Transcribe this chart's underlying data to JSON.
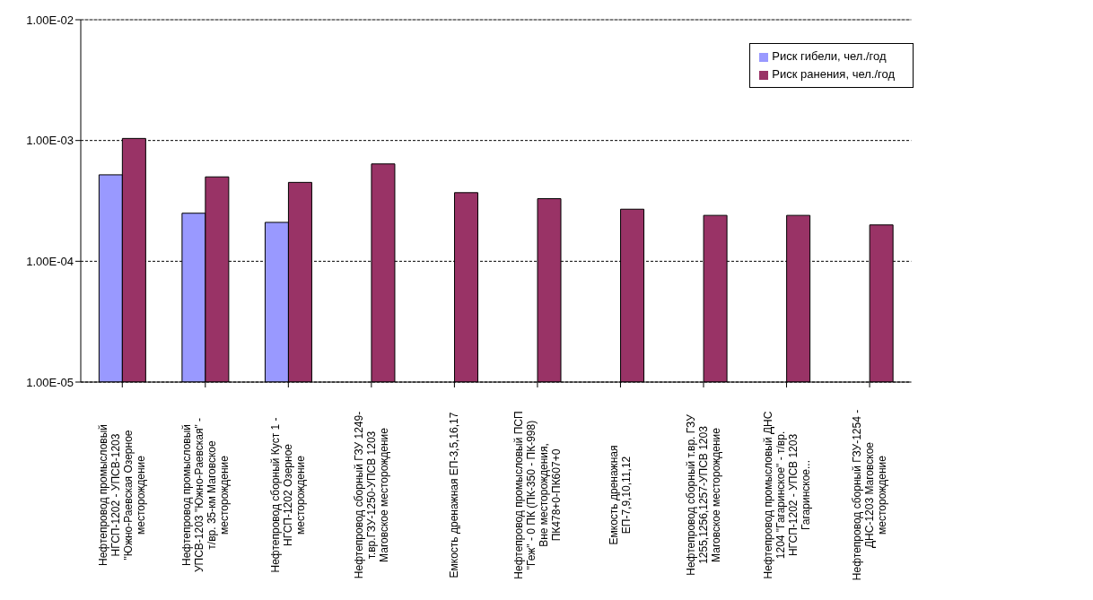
{
  "chart_data": {
    "type": "bar",
    "categories": [
      "Нефтепровод промысловый НГСП-1202 - УПСВ-1203 \"Южно-Раевская Озерное месторождение",
      "Нефтепровод промысловый УПСВ-1203 \"Южно-Раевская\" - т/вр. 35-км Маговское месторождение",
      "Нефтепровод сборный Куст 1 - НГСП-1202 Озерное месторождение",
      "Нефтепровод сборный ГЗУ 1249- т.вр.ГЗУ-1250-УПСВ 1203 Маговское месторождение",
      "Емкость дренажная ЕП-3,5,16,17",
      "Нефтепровод промысловый ПСП \"Геж\" - 0 ПК (ПК-350 - ПК-998) Вне месторождения, ПК478+0-ПК607+0",
      "Емкость дренажная ЕП-7,9,10,11,12",
      "Нефтепровод сборный т.вр. ГЗУ 1255,1256,1257-УПСВ 1203 Маговское месторождение",
      "Нефтепровод промысловый ДНС 1204 \"Гагаринское\" - т/вр. НГСП-1202 - УПСВ 1203 Гагаринское...",
      "Нефтепровод сборный ГЗУ-1254 - ДНС-1203 Маговское месторождение"
    ],
    "series": [
      {
        "name": "Риск гибели, чел./год",
        "color": "#9999ff",
        "values": [
          0.00052,
          0.00025,
          0.00021,
          null,
          null,
          null,
          null,
          null,
          null,
          null
        ]
      },
      {
        "name": "Риск ранения, чел./год",
        "color": "#993366",
        "values": [
          0.00104,
          0.0005,
          0.00045,
          0.00064,
          0.00037,
          0.00033,
          0.00027,
          0.00024,
          0.00024,
          0.0002
        ]
      }
    ],
    "log": "y",
    "ylim": [
      1e-05,
      0.01
    ],
    "yticks": [
      {
        "value": 1e-05,
        "label": "1.00E-05"
      },
      {
        "value": 0.0001,
        "label": "1.00E-04"
      },
      {
        "value": 0.001,
        "label": "1.00E-03"
      },
      {
        "value": 0.01,
        "label": "1.00E-02"
      }
    ],
    "grid": "y",
    "legend": "top right"
  }
}
